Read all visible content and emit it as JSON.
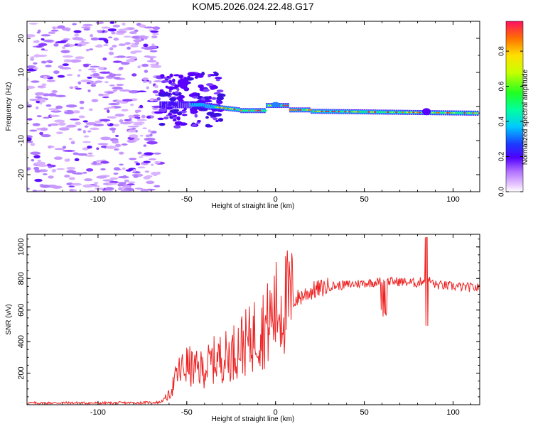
{
  "title": "KOM5.2026.024.22.48.G17",
  "chart_data": [
    {
      "type": "heatmap",
      "xlabel": "Height of straight line (km)",
      "ylabel": "Frequency (Hz)",
      "xlim": [
        -140,
        115
      ],
      "ylim": [
        -25,
        25
      ],
      "xticks": [
        -100,
        -50,
        0,
        50,
        100
      ],
      "yticks": [
        -20,
        -10,
        0,
        10,
        20
      ],
      "colorbar": {
        "label": "Normalized spectral amplitude",
        "range": [
          0,
          0.97
        ],
        "ticks": [
          0.0,
          0.2,
          0.4,
          0.6,
          0.8
        ]
      },
      "ridge": {
        "description_points_x": [
          -65,
          -50,
          -30,
          -10,
          0,
          20,
          50,
          80,
          115
        ],
        "frequency_hz": [
          0.0,
          0.0,
          0.0,
          -1.0,
          0.0,
          -1.5,
          -1.5,
          -1.5,
          -2.0
        ]
      }
    },
    {
      "type": "line",
      "xlabel": "Height of straight line (km)",
      "ylabel": "SNR (v/v)",
      "xlim": [
        -140,
        115
      ],
      "ylim": [
        0,
        1080
      ],
      "xticks": [
        -100,
        -50,
        0,
        50,
        100
      ],
      "yticks": [
        200,
        400,
        600,
        800,
        1000
      ],
      "color": "#ee2222",
      "series": [
        {
          "name": "SNR",
          "x": [
            -140,
            -120,
            -100,
            -80,
            -65,
            -60,
            -55,
            -50,
            -45,
            -40,
            -35,
            -30,
            -25,
            -20,
            -15,
            -10,
            -5,
            0,
            5,
            10,
            20,
            30,
            40,
            50,
            60,
            70,
            80,
            85,
            90,
            100,
            115
          ],
          "y": [
            10,
            12,
            10,
            12,
            15,
            60,
            200,
            250,
            220,
            230,
            280,
            300,
            320,
            380,
            400,
            480,
            500,
            600,
            640,
            660,
            720,
            750,
            760,
            770,
            780,
            780,
            770,
            800,
            760,
            750,
            740
          ]
        }
      ]
    }
  ]
}
